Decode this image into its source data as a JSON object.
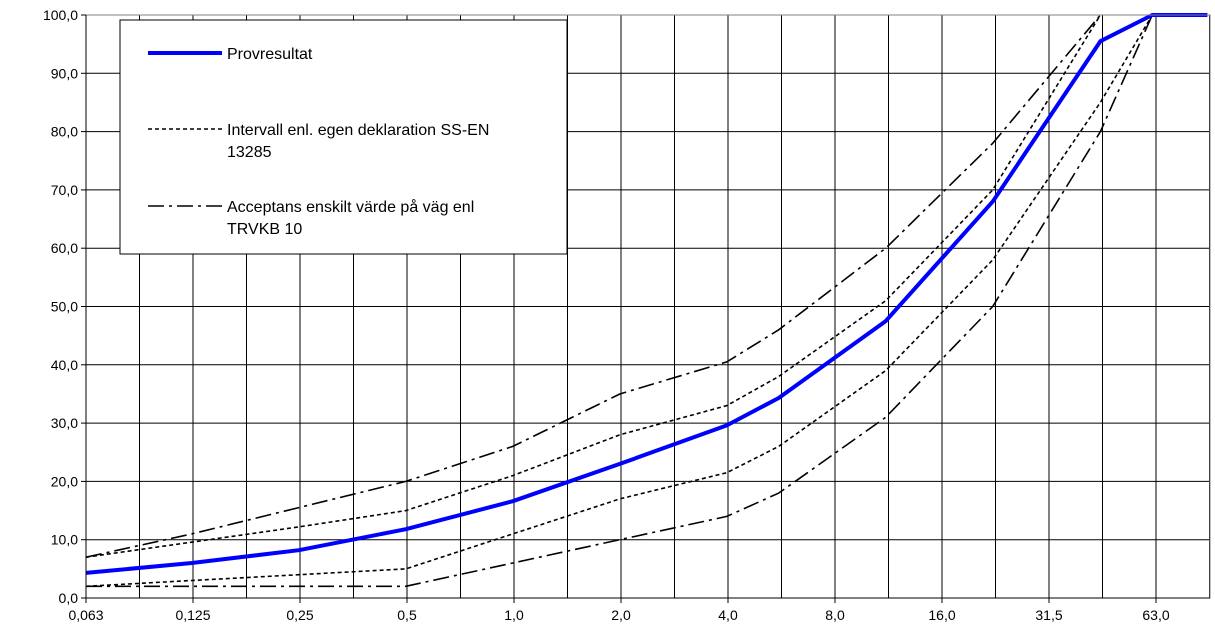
{
  "chart_data": {
    "type": "line",
    "title": "",
    "xlabel": "",
    "ylabel": "",
    "x_scale": "log",
    "x_ticks": [
      "0,063",
      "0,125",
      "0,25",
      "0,5",
      "1,0",
      "2,0",
      "4,0",
      "8,0",
      "16,0",
      "31,5",
      "63,0"
    ],
    "y_ticks": [
      "0,0",
      "10,0",
      "20,0",
      "30,0",
      "40,0",
      "50,0",
      "60,0",
      "70,0",
      "80,0",
      "90,0",
      "100,0"
    ],
    "ylim": [
      0,
      100
    ],
    "grid": true,
    "legend_position": "top-left",
    "series": [
      {
        "name": "Provresultat",
        "color": "#0000ff",
        "style": "solid",
        "points": [
          [
            0.063,
            4.3
          ],
          [
            0.125,
            6.0
          ],
          [
            0.25,
            8.2
          ],
          [
            0.5,
            11.8
          ],
          [
            1.0,
            16.6
          ],
          [
            2.0,
            23.0
          ],
          [
            4.0,
            29.6
          ],
          [
            5.6,
            34.3
          ],
          [
            11.2,
            47.5
          ],
          [
            22.4,
            68.0
          ],
          [
            45.0,
            95.5
          ],
          [
            63.0,
            100.0
          ],
          [
            90.0,
            100.0
          ]
        ]
      },
      {
        "name": "Intervall enl. egen deklaration SS-EN 13285",
        "legend_lines": [
          "Intervall enl. egen deklaration SS-EN",
          "13285"
        ],
        "color": "#000000",
        "style": "dashed",
        "points": [
          [
            0.063,
            7.0
          ],
          [
            0.25,
            12.2
          ],
          [
            0.5,
            15.0
          ],
          [
            1.0,
            21.0
          ],
          [
            2.0,
            28.0
          ],
          [
            4.0,
            33.0
          ],
          [
            5.6,
            38.0
          ],
          [
            11.2,
            51.0
          ],
          [
            22.4,
            70.0
          ],
          [
            45.0,
            100.0
          ]
        ]
      },
      {
        "name": "",
        "color": "#000000",
        "style": "dashed",
        "points": [
          [
            0.063,
            2.0
          ],
          [
            0.125,
            3.0
          ],
          [
            0.25,
            4.0
          ],
          [
            0.5,
            5.0
          ],
          [
            1.0,
            11.0
          ],
          [
            2.0,
            17.0
          ],
          [
            4.0,
            21.5
          ],
          [
            5.6,
            26.0
          ],
          [
            11.2,
            39.0
          ],
          [
            22.4,
            58.0
          ],
          [
            45.0,
            85.0
          ],
          [
            63.0,
            100.0
          ]
        ]
      },
      {
        "name": "Acceptans enskilt värde på väg enl TRVKB 10",
        "legend_lines": [
          "Acceptans enskilt värde på väg enl",
          "TRVKB 10"
        ],
        "color": "#000000",
        "style": "dash-dot",
        "points": [
          [
            0.063,
            7.0
          ],
          [
            0.125,
            11.0
          ],
          [
            0.25,
            15.5
          ],
          [
            0.5,
            20.0
          ],
          [
            1.0,
            26.0
          ],
          [
            2.0,
            35.0
          ],
          [
            4.0,
            40.5
          ],
          [
            5.6,
            46.0
          ],
          [
            11.2,
            60.0
          ],
          [
            22.4,
            78.0
          ],
          [
            45.0,
            100.0
          ]
        ]
      },
      {
        "name": "",
        "color": "#000000",
        "style": "dash-dot",
        "points": [
          [
            0.063,
            2.0
          ],
          [
            0.125,
            2.0
          ],
          [
            0.25,
            2.0
          ],
          [
            0.5,
            2.0
          ],
          [
            1.0,
            6.0
          ],
          [
            2.0,
            10.0
          ],
          [
            4.0,
            14.0
          ],
          [
            5.6,
            18.0
          ],
          [
            11.2,
            31.0
          ],
          [
            22.4,
            50.0
          ],
          [
            45.0,
            80.0
          ],
          [
            63.0,
            100.0
          ]
        ]
      }
    ]
  }
}
